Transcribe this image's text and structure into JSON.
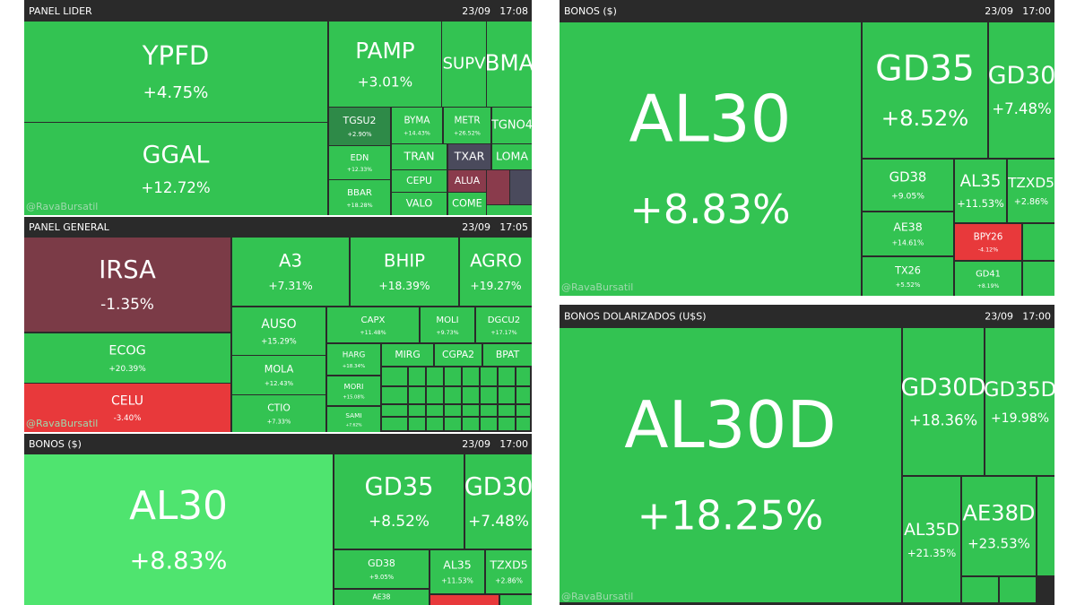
{
  "panels": [
    {
      "title": "PANEL LIDER",
      "date": "23/09",
      "time": "17:08",
      "watermark": "@RavaBursatil",
      "tiles": [
        {
          "label": "YPFD",
          "change": "+4.75%"
        },
        {
          "label": "GGAL",
          "change": "+12.72%"
        },
        {
          "label": "PAMP",
          "change": "+3.01%"
        },
        {
          "label": "SUPV"
        },
        {
          "label": "BMA"
        },
        {
          "label": "TGSU2",
          "change": "+2.90%"
        },
        {
          "label": "BYMA",
          "change": "+14.43%"
        },
        {
          "label": "METR",
          "change": "+26.52%"
        },
        {
          "label": "TGNO4"
        },
        {
          "label": "EDN",
          "change": "+12.33%"
        },
        {
          "label": "TRAN"
        },
        {
          "label": "TXAR"
        },
        {
          "label": "LOMA"
        },
        {
          "label": "BBAR",
          "change": "+18.28%"
        },
        {
          "label": "CEPU"
        },
        {
          "label": "VALO"
        },
        {
          "label": "ALUA"
        },
        {
          "label": "COME"
        }
      ]
    },
    {
      "title": "PANEL GENERAL",
      "date": "23/09",
      "time": "17:05",
      "watermark": "@RavaBursatil",
      "tiles": [
        {
          "label": "IRSA",
          "change": "-1.35%"
        },
        {
          "label": "ECOG",
          "change": "+20.39%"
        },
        {
          "label": "CELU",
          "change": "-3.40%"
        },
        {
          "label": "A3",
          "change": "+7.31%"
        },
        {
          "label": "BHIP",
          "change": "+18.39%"
        },
        {
          "label": "AGRO",
          "change": "+19.27%"
        },
        {
          "label": "AUSO",
          "change": "+15.29%"
        },
        {
          "label": "MOLA",
          "change": "+12.43%"
        },
        {
          "label": "CTIO",
          "change": "+7.33%"
        },
        {
          "label": "CAPX",
          "change": "+11.48%"
        },
        {
          "label": "MOLI",
          "change": "+9.73%"
        },
        {
          "label": "DGCU2",
          "change": "+17.17%"
        },
        {
          "label": "HARG",
          "change": "+18.34%"
        },
        {
          "label": "MORI",
          "change": "+15.08%"
        },
        {
          "label": "SAMI",
          "change": "+7.62%"
        },
        {
          "label": "MIRG"
        },
        {
          "label": "CGPA2"
        },
        {
          "label": "BPAT"
        }
      ]
    },
    {
      "title": "BONOS ($)",
      "date": "23/09",
      "time": "17:00",
      "tiles": [
        {
          "label": "AL30",
          "change": "+8.83%"
        },
        {
          "label": "GD35",
          "change": "+8.52%"
        },
        {
          "label": "GD30",
          "change": "+7.48%"
        },
        {
          "label": "GD38",
          "change": "+9.05%"
        },
        {
          "label": "AL35",
          "change": "+11.53%"
        },
        {
          "label": "TZXD5",
          "change": "+2.86%"
        },
        {
          "label": "AE38"
        }
      ]
    },
    {
      "title": "BONOS ($)",
      "date": "23/09",
      "time": "17:00",
      "watermark": "@RavaBursatil",
      "tiles": [
        {
          "label": "AL30",
          "change": "+8.83%"
        },
        {
          "label": "GD35",
          "change": "+8.52%"
        },
        {
          "label": "GD30",
          "change": "+7.48%"
        },
        {
          "label": "GD38",
          "change": "+9.05%"
        },
        {
          "label": "AL35",
          "change": "+11.53%"
        },
        {
          "label": "TZXD5",
          "change": "+2.86%"
        },
        {
          "label": "AE38",
          "change": "+14.61%"
        },
        {
          "label": "BPY26",
          "change": "-4.12%"
        },
        {
          "label": "TX26",
          "change": "+5.52%"
        },
        {
          "label": "GD41",
          "change": "+8.19%"
        }
      ]
    },
    {
      "title": "BONOS DOLARIZADOS (U$S)",
      "date": "23/09",
      "time": "17:00",
      "watermark": "@RavaBursatil",
      "tiles": [
        {
          "label": "AL30D",
          "change": "+18.25%"
        },
        {
          "label": "GD30D",
          "change": "+18.36%"
        },
        {
          "label": "GD35D",
          "change": "+19.98%"
        },
        {
          "label": "AL35D",
          "change": "+21.35%"
        },
        {
          "label": "AE38D",
          "change": "+23.53%"
        }
      ]
    }
  ]
}
